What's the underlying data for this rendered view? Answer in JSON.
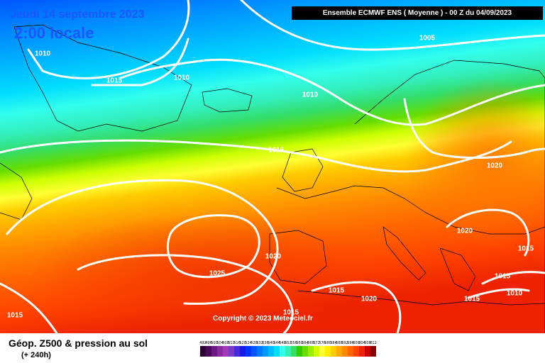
{
  "header": {
    "date": "Jeudi 14 septembre 2023",
    "time": "2:00 locale",
    "model": "Ensemble ECMWF ENS  ( Moyenne )  -  00 Z du 04/09/2023"
  },
  "copyright": "Copyright © 2023 Meteociel.fr",
  "isobar_labels": [
    "1010",
    "1010",
    "1015",
    "1010",
    "1005",
    "1015",
    "1020",
    "1020",
    "1020",
    "1025",
    "1015",
    "1015",
    "1015",
    "1020",
    "1015",
    "1015",
    "1010",
    "1015"
  ],
  "legend": {
    "title": "Géop. Z500 & pression au sol",
    "subtitle": "(+ 240h)",
    "scale": [
      {
        "label": "492",
        "color": "#2a0033"
      },
      {
        "label": "496",
        "color": "#4a0a5a"
      },
      {
        "label": "500",
        "color": "#6a1a80"
      },
      {
        "label": "504",
        "color": "#8a2aa0"
      },
      {
        "label": "508",
        "color": "#a23ab8"
      },
      {
        "label": "512",
        "color": "#7a3ac8"
      },
      {
        "label": "516",
        "color": "#4a2ad8"
      },
      {
        "label": "520",
        "color": "#1a1ae8"
      },
      {
        "label": "524",
        "color": "#0033ff"
      },
      {
        "label": "528",
        "color": "#0055ff"
      },
      {
        "label": "532",
        "color": "#0077ff"
      },
      {
        "label": "536",
        "color": "#0099ff"
      },
      {
        "label": "540",
        "color": "#00bbff"
      },
      {
        "label": "544",
        "color": "#00ddff"
      },
      {
        "label": "548",
        "color": "#33ffee"
      },
      {
        "label": "552",
        "color": "#33eebb"
      },
      {
        "label": "556",
        "color": "#33dd66"
      },
      {
        "label": "560",
        "color": "#33cc00"
      },
      {
        "label": "564",
        "color": "#66dd00"
      },
      {
        "label": "568",
        "color": "#99ee00"
      },
      {
        "label": "572",
        "color": "#ccff00"
      },
      {
        "label": "576",
        "color": "#ffff33"
      },
      {
        "label": "580",
        "color": "#ffee00"
      },
      {
        "label": "584",
        "color": "#ffcc00"
      },
      {
        "label": "588",
        "color": "#ffaa00"
      },
      {
        "label": "592",
        "color": "#ff8800"
      },
      {
        "label": "596",
        "color": "#ff6600"
      },
      {
        "label": "600",
        "color": "#ff4400"
      },
      {
        "label": "604",
        "color": "#ee2200"
      },
      {
        "label": "608",
        "color": "#cc0000"
      },
      {
        "label": "612",
        "color": "#880000"
      }
    ]
  }
}
